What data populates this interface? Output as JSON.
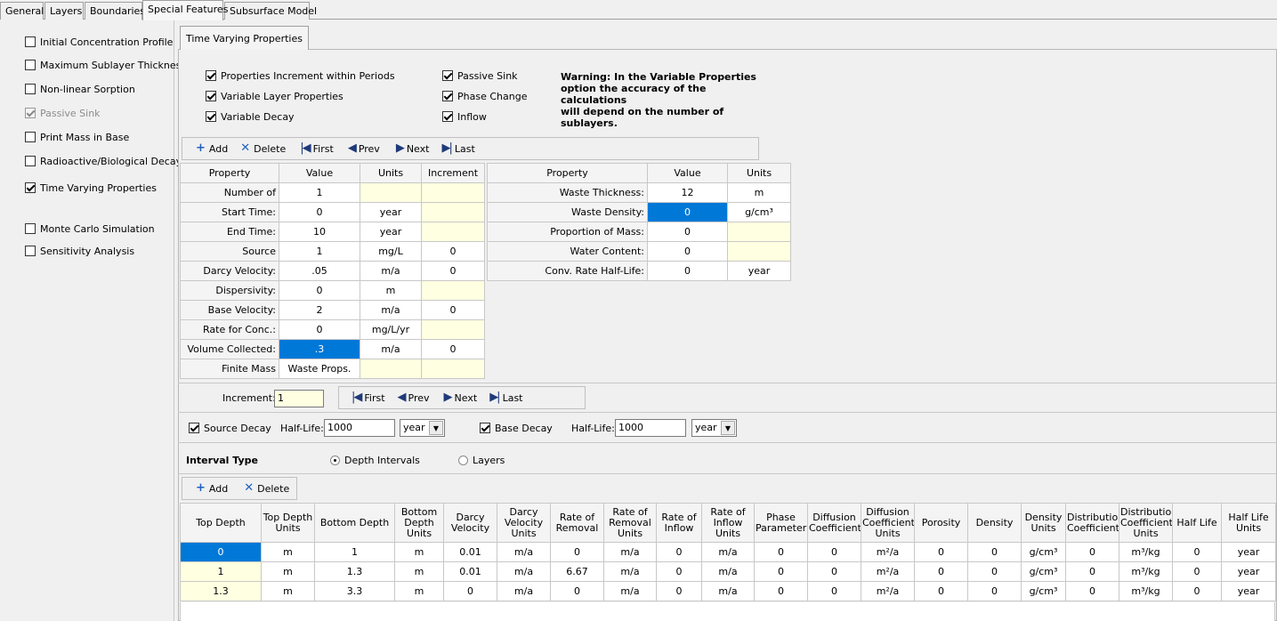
{
  "tabs": [
    "General",
    "Layers",
    "Boundaries",
    "Special Features",
    "Subsurface Model"
  ],
  "left_options": [
    {
      "label": "Initial Concentration Profile",
      "checked": false,
      "disabled": false
    },
    {
      "label": "Maximum Sublayer Thickness",
      "checked": false,
      "disabled": false
    },
    {
      "label": "Non-linear Sorption",
      "checked": false,
      "disabled": false
    },
    {
      "label": "Passive Sink",
      "checked": true,
      "disabled": true
    },
    {
      "label": "Print Mass in Base",
      "checked": false,
      "disabled": false
    },
    {
      "label": "Radioactive/Biological Decay",
      "checked": false,
      "disabled": false
    },
    {
      "label": "Time Varying Properties",
      "checked": true,
      "disabled": false
    },
    {
      "label": "Monte Carlo Simulation",
      "checked": false,
      "disabled": false
    },
    {
      "label": "Sensitivity Analysis",
      "checked": false,
      "disabled": false
    }
  ],
  "subtab": "Time Varying Properties",
  "options_col1": [
    "Properties Increment within Periods",
    "Variable Layer Properties",
    "Variable Decay"
  ],
  "options_col2": [
    "Passive Sink",
    "Phase Change",
    "Inflow"
  ],
  "warning": [
    "Warning: In the Variable Properties",
    "option the accuracy of the calculations",
    "will depend on the number of",
    "sublayers."
  ],
  "toolbar1": {
    "add": "Add",
    "delete": "Delete",
    "first": "First",
    "prev": "Prev",
    "next": "Next",
    "last": "Last"
  },
  "table1": {
    "headers": [
      "Property",
      "Value",
      "Units",
      "Increment"
    ],
    "rows": [
      [
        "Number of",
        "1",
        "",
        ""
      ],
      [
        "Start Time:",
        "0",
        "year",
        ""
      ],
      [
        "End Time:",
        "10",
        "year",
        ""
      ],
      [
        "Source",
        "1",
        "mg/L",
        "0"
      ],
      [
        "Darcy Velocity:",
        ".05",
        "m/a",
        "0"
      ],
      [
        "Dispersivity:",
        "0",
        "m",
        ""
      ],
      [
        "Base Velocity:",
        "2",
        "m/a",
        "0"
      ],
      [
        "Rate for Conc.:",
        "0",
        "mg/L/yr",
        ""
      ],
      [
        "Volume Collected:",
        ".3",
        "m/a",
        "0"
      ],
      [
        "Finite Mass",
        "Waste Props.",
        "",
        ""
      ]
    ]
  },
  "table2": {
    "headers": [
      "Property",
      "Value",
      "Units"
    ],
    "rows": [
      [
        "Waste Thickness:",
        "12",
        "m"
      ],
      [
        "Waste Density:",
        "0",
        "g/cm³"
      ],
      [
        "Proportion of Mass:",
        "0",
        ""
      ],
      [
        "Water Content:",
        "0",
        ""
      ],
      [
        "Conv. Rate Half-Life:",
        "0",
        "year"
      ]
    ]
  },
  "increment": {
    "label": "Increment:",
    "value": "1"
  },
  "nav2": {
    "first": "First",
    "prev": "Prev",
    "next": "Next",
    "last": "Last"
  },
  "decay": {
    "source_label": "Source Decay",
    "halflife_label": "Half-Life:",
    "source_halflife": "1000",
    "source_unit": "year",
    "base_label": "Base Decay",
    "base_halflife": "1000",
    "base_unit": "year"
  },
  "interval": {
    "label": "Interval Type",
    "opt1": "Depth Intervals",
    "opt2": "Layers"
  },
  "toolbar2": {
    "add": "Add",
    "delete": "Delete"
  },
  "table3": {
    "headers": [
      "Top Depth",
      "Top Depth Units",
      "Bottom Depth",
      "Bottom Depth Units",
      "Darcy Velocity",
      "Darcy Velocity Units",
      "Rate of Removal",
      "Rate of Removal Units",
      "Rate of Inflow",
      "Rate of Inflow Units",
      "Phase Parameter",
      "Diffusion Coefficient",
      "Diffusion Coefficient Units",
      "Porosity",
      "Density",
      "Density Units",
      "Distribution Coefficient",
      "Distribution Coefficient Units",
      "Half Life",
      "Half Life Units"
    ],
    "rows": [
      [
        "0",
        "m",
        "1",
        "m",
        "0.01",
        "m/a",
        "0",
        "m/a",
        "0",
        "m/a",
        "0",
        "0",
        "m²/a",
        "0",
        "0",
        "g/cm³",
        "0",
        "m³/kg",
        "0",
        "year"
      ],
      [
        "1",
        "m",
        "1.3",
        "m",
        "0.01",
        "m/a",
        "6.67",
        "m/a",
        "0",
        "m/a",
        "0",
        "0",
        "m²/a",
        "0",
        "0",
        "g/cm³",
        "0",
        "m³/kg",
        "0",
        "year"
      ],
      [
        "1.3",
        "m",
        "3.3",
        "m",
        "0",
        "m/a",
        "0",
        "m/a",
        "0",
        "m/a",
        "0",
        "0",
        "m²/a",
        "0",
        "0",
        "g/cm³",
        "0",
        "m³/kg",
        "0",
        "year"
      ]
    ]
  }
}
